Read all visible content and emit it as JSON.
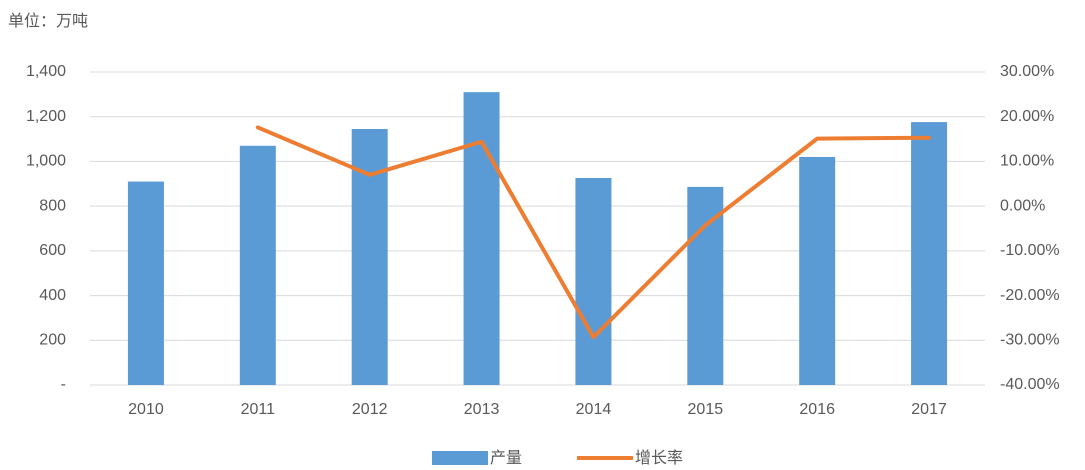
{
  "chart_data": {
    "type": "bar-line",
    "unit_label": "单位：万吨",
    "categories": [
      "2010",
      "2011",
      "2012",
      "2013",
      "2014",
      "2015",
      "2016",
      "2017"
    ],
    "series": [
      {
        "name": "产量",
        "color": "#5b9bd5",
        "type": "bar",
        "values": [
          910,
          1070,
          1145,
          1310,
          926,
          886,
          1020,
          1176
        ]
      },
      {
        "name": "增长率",
        "color": "#ed7d31",
        "type": "line",
        "axis": "y2",
        "values": [
          null,
          17.6,
          7.0,
          14.4,
          -29.3,
          -4.3,
          15.1,
          15.3
        ]
      }
    ],
    "ylim": [
      0,
      1400
    ],
    "yticks": [
      {
        "value": 0,
        "label": "-"
      },
      200,
      400,
      600,
      800,
      {
        "value": 1000,
        "label": "1,000"
      },
      {
        "value": 1200,
        "label": "1,200"
      },
      {
        "value": 1400,
        "label": "1,400"
      }
    ],
    "y2lim": [
      -40,
      30
    ],
    "y2ticks": [
      {
        "value": -40,
        "label": "-40.00%"
      },
      {
        "value": -30,
        "label": "-30.00%"
      },
      {
        "value": -20,
        "label": "-20.00%"
      },
      {
        "value": -10,
        "label": "-10.00%"
      },
      {
        "value": 0,
        "label": "0.00%"
      },
      {
        "value": 10,
        "label": "10.00%"
      },
      {
        "value": 20,
        "label": "20.00%"
      },
      {
        "value": 30,
        "label": "30.00%"
      }
    ],
    "grid": true,
    "legend": "bottom"
  }
}
